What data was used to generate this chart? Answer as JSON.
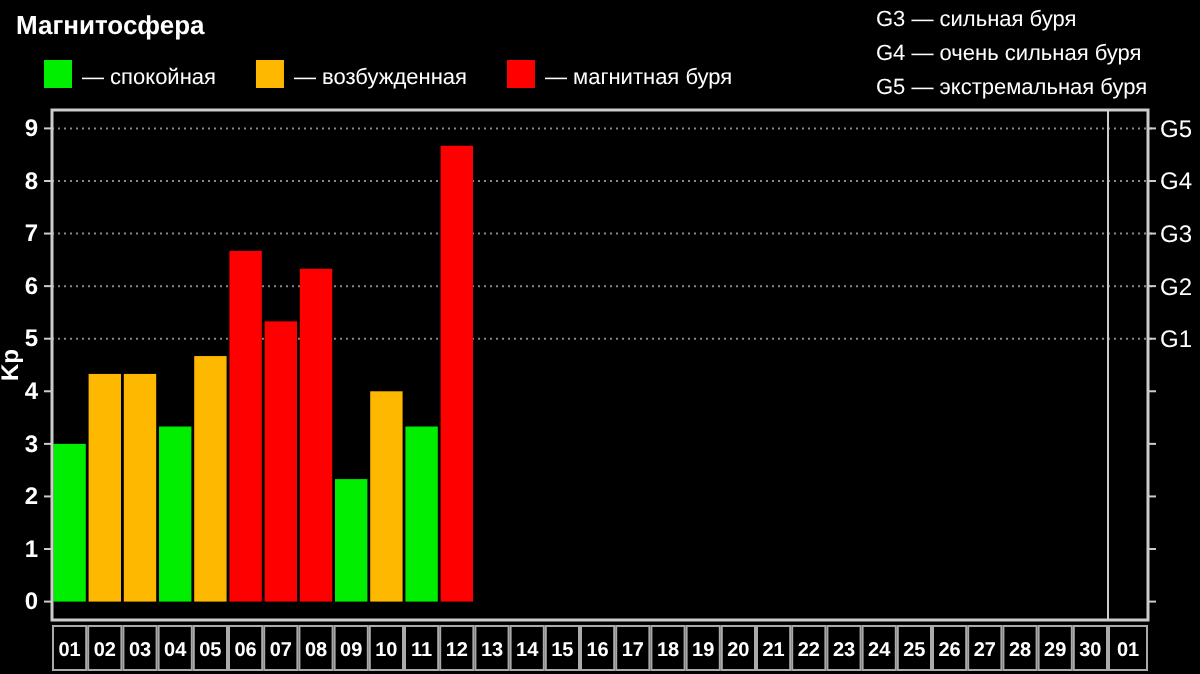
{
  "chart_data": {
    "type": "bar",
    "title": "Магнитосфера",
    "ylabel": "Kp",
    "categories": [
      "01",
      "02",
      "03",
      "04",
      "05",
      "06",
      "07",
      "08",
      "09",
      "10",
      "11",
      "12",
      "13",
      "14",
      "15",
      "16",
      "17",
      "18",
      "19",
      "20",
      "21",
      "22",
      "23",
      "24",
      "25",
      "26",
      "27",
      "28",
      "29",
      "30",
      "01"
    ],
    "series": [
      {
        "name": "— спокойная",
        "color": "#00ee00",
        "values": [
          3,
          null,
          null,
          3.33,
          null,
          null,
          null,
          null,
          2.33,
          null,
          3.33,
          null,
          null,
          null,
          null,
          null,
          null,
          null,
          null,
          null,
          null,
          null,
          null,
          null,
          null,
          null,
          null,
          null,
          null,
          null,
          null
        ]
      },
      {
        "name": "— возбужденная",
        "color": "#ffb800",
        "values": [
          null,
          4.33,
          4.33,
          null,
          4.67,
          null,
          null,
          null,
          null,
          4,
          null,
          null,
          null,
          null,
          null,
          null,
          null,
          null,
          null,
          null,
          null,
          null,
          null,
          null,
          null,
          null,
          null,
          null,
          null,
          null,
          null
        ]
      },
      {
        "name": "— магнитная буря",
        "color": "#ff0000",
        "values": [
          null,
          null,
          null,
          null,
          null,
          6.67,
          5.33,
          6.33,
          null,
          null,
          null,
          8.67,
          null,
          null,
          null,
          null,
          null,
          null,
          null,
          null,
          null,
          null,
          null,
          null,
          null,
          null,
          null,
          null,
          null,
          null,
          null
        ]
      }
    ],
    "ylim": [
      -0.35,
      9.35
    ],
    "yticks": [
      0,
      1,
      2,
      3,
      4,
      5,
      6,
      7,
      8,
      9
    ],
    "ref_lines": [
      {
        "axis": "y",
        "value": 5,
        "label": "G1",
        "line_style": "dotted"
      },
      {
        "axis": "y",
        "value": 6,
        "label": "G2",
        "line_style": "dotted"
      },
      {
        "axis": "y",
        "value": 7,
        "label": "G3",
        "line_style": "dotted"
      },
      {
        "axis": "y",
        "value": 8,
        "label": "G4",
        "line_style": "dotted"
      },
      {
        "axis": "y",
        "value": 9,
        "label": "G5",
        "line_style": "dotted"
      }
    ],
    "legend": "top left",
    "annotations": [
      "G3 — сильная буря",
      "G4 — очень сильная буря",
      "G5 — экстремальная буря"
    ]
  }
}
